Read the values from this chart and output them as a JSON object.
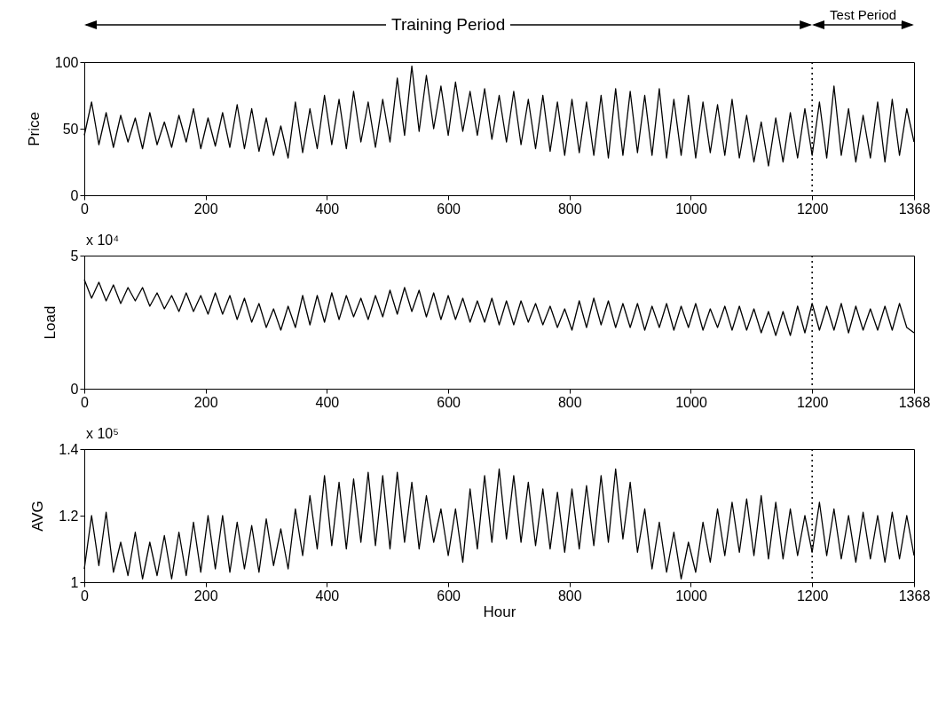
{
  "chart_data": [
    {
      "type": "line",
      "ylabel": "Price",
      "annotations": [
        "Training Period",
        "Test Period"
      ],
      "xlim": [
        0,
        1368
      ],
      "xticks": [
        0,
        200,
        400,
        600,
        800,
        1000,
        1200,
        1368
      ],
      "ylim": [
        0,
        100
      ],
      "yticks": [
        0,
        50,
        100
      ],
      "grid": false,
      "marker": "none",
      "line_style": "solid",
      "ref_lines": [
        {
          "axis": "x",
          "value": 1200,
          "line_style": "dotted",
          "color": "#000000"
        }
      ],
      "x": [
        0,
        12,
        24,
        36,
        48,
        60,
        72,
        84,
        96,
        108,
        120,
        132,
        144,
        156,
        168,
        180,
        192,
        204,
        216,
        228,
        240,
        252,
        264,
        276,
        288,
        300,
        312,
        324,
        336,
        348,
        360,
        372,
        384,
        396,
        408,
        420,
        432,
        444,
        456,
        468,
        480,
        492,
        504,
        516,
        528,
        540,
        552,
        564,
        576,
        588,
        600,
        612,
        624,
        636,
        648,
        660,
        672,
        684,
        696,
        708,
        720,
        732,
        744,
        756,
        768,
        780,
        792,
        804,
        816,
        828,
        840,
        852,
        864,
        876,
        888,
        900,
        912,
        924,
        936,
        948,
        960,
        972,
        984,
        996,
        1008,
        1020,
        1032,
        1044,
        1056,
        1068,
        1080,
        1092,
        1104,
        1116,
        1128,
        1140,
        1152,
        1164,
        1176,
        1188,
        1200,
        1212,
        1224,
        1236,
        1248,
        1260,
        1272,
        1284,
        1296,
        1308,
        1320,
        1332,
        1344,
        1356,
        1368
      ],
      "series": [
        {
          "color": "#000000",
          "values": [
            45,
            70,
            38,
            62,
            36,
            60,
            40,
            58,
            35,
            62,
            38,
            55,
            36,
            60,
            40,
            65,
            35,
            58,
            37,
            62,
            36,
            68,
            35,
            65,
            33,
            58,
            30,
            52,
            28,
            70,
            32,
            65,
            35,
            75,
            38,
            72,
            35,
            78,
            40,
            70,
            36,
            72,
            40,
            88,
            45,
            97,
            48,
            90,
            50,
            82,
            45,
            85,
            48,
            78,
            45,
            80,
            42,
            75,
            40,
            78,
            38,
            72,
            35,
            75,
            33,
            70,
            30,
            72,
            32,
            70,
            30,
            75,
            28,
            80,
            30,
            78,
            32,
            75,
            30,
            80,
            28,
            72,
            30,
            75,
            28,
            70,
            32,
            68,
            30,
            72,
            28,
            60,
            25,
            55,
            22,
            58,
            25,
            62,
            28,
            65,
            30,
            70,
            28,
            82,
            30,
            65,
            25,
            60,
            28,
            70,
            25,
            72,
            30,
            65,
            40
          ]
        }
      ]
    },
    {
      "type": "line",
      "ylabel": "Load",
      "annotations": [
        "x 10⁴"
      ],
      "xlim": [
        0,
        1368
      ],
      "xticks": [
        0,
        200,
        400,
        600,
        800,
        1000,
        1200,
        1368
      ],
      "ylim": [
        0,
        5
      ],
      "yticks": [
        0,
        5
      ],
      "grid": false,
      "marker": "none",
      "line_style": "solid",
      "ref_lines": [
        {
          "axis": "x",
          "value": 1200,
          "line_style": "dotted",
          "color": "#000000"
        }
      ],
      "x": [
        0,
        12,
        24,
        36,
        48,
        60,
        72,
        84,
        96,
        108,
        120,
        132,
        144,
        156,
        168,
        180,
        192,
        204,
        216,
        228,
        240,
        252,
        264,
        276,
        288,
        300,
        312,
        324,
        336,
        348,
        360,
        372,
        384,
        396,
        408,
        420,
        432,
        444,
        456,
        468,
        480,
        492,
        504,
        516,
        528,
        540,
        552,
        564,
        576,
        588,
        600,
        612,
        624,
        636,
        648,
        660,
        672,
        684,
        696,
        708,
        720,
        732,
        744,
        756,
        768,
        780,
        792,
        804,
        816,
        828,
        840,
        852,
        864,
        876,
        888,
        900,
        912,
        924,
        936,
        948,
        960,
        972,
        984,
        996,
        1008,
        1020,
        1032,
        1044,
        1056,
        1068,
        1080,
        1092,
        1104,
        1116,
        1128,
        1140,
        1152,
        1164,
        1176,
        1188,
        1200,
        1212,
        1224,
        1236,
        1248,
        1260,
        1272,
        1284,
        1296,
        1308,
        1320,
        1332,
        1344,
        1356,
        1368
      ],
      "series": [
        {
          "color": "#000000",
          "values": [
            4.1,
            3.4,
            4.0,
            3.3,
            3.9,
            3.2,
            3.8,
            3.3,
            3.8,
            3.1,
            3.6,
            3.0,
            3.5,
            2.9,
            3.6,
            2.9,
            3.5,
            2.8,
            3.6,
            2.8,
            3.5,
            2.6,
            3.4,
            2.5,
            3.2,
            2.3,
            3.0,
            2.2,
            3.1,
            2.3,
            3.5,
            2.4,
            3.5,
            2.5,
            3.6,
            2.6,
            3.5,
            2.7,
            3.4,
            2.6,
            3.5,
            2.7,
            3.7,
            2.8,
            3.8,
            2.9,
            3.7,
            2.7,
            3.6,
            2.6,
            3.5,
            2.6,
            3.4,
            2.5,
            3.3,
            2.5,
            3.4,
            2.4,
            3.3,
            2.4,
            3.3,
            2.5,
            3.2,
            2.4,
            3.1,
            2.3,
            3.0,
            2.2,
            3.3,
            2.3,
            3.4,
            2.4,
            3.3,
            2.3,
            3.2,
            2.3,
            3.2,
            2.2,
            3.1,
            2.3,
            3.2,
            2.2,
            3.1,
            2.3,
            3.2,
            2.2,
            3.0,
            2.3,
            3.1,
            2.2,
            3.1,
            2.2,
            3.0,
            2.1,
            2.9,
            2.0,
            2.9,
            2.0,
            3.1,
            2.1,
            3.2,
            2.2,
            3.1,
            2.2,
            3.2,
            2.1,
            3.1,
            2.2,
            3.0,
            2.2,
            3.1,
            2.2,
            3.2,
            2.3,
            2.1
          ]
        }
      ]
    },
    {
      "type": "line",
      "xlabel": "Hour",
      "ylabel": "AVG",
      "annotations": [
        "x 10⁵"
      ],
      "xlim": [
        0,
        1368
      ],
      "xticks": [
        0,
        200,
        400,
        600,
        800,
        1000,
        1200,
        1368
      ],
      "ylim": [
        1,
        1.4
      ],
      "yticks": [
        1,
        1.2,
        1.4
      ],
      "grid": false,
      "marker": "none",
      "line_style": "solid",
      "ref_lines": [
        {
          "axis": "x",
          "value": 1200,
          "line_style": "dotted",
          "color": "#000000"
        }
      ],
      "x": [
        0,
        12,
        24,
        36,
        48,
        60,
        72,
        84,
        96,
        108,
        120,
        132,
        144,
        156,
        168,
        180,
        192,
        204,
        216,
        228,
        240,
        252,
        264,
        276,
        288,
        300,
        312,
        324,
        336,
        348,
        360,
        372,
        384,
        396,
        408,
        420,
        432,
        444,
        456,
        468,
        480,
        492,
        504,
        516,
        528,
        540,
        552,
        564,
        576,
        588,
        600,
        612,
        624,
        636,
        648,
        660,
        672,
        684,
        696,
        708,
        720,
        732,
        744,
        756,
        768,
        780,
        792,
        804,
        816,
        828,
        840,
        852,
        864,
        876,
        888,
        900,
        912,
        924,
        936,
        948,
        960,
        972,
        984,
        996,
        1008,
        1020,
        1032,
        1044,
        1056,
        1068,
        1080,
        1092,
        1104,
        1116,
        1128,
        1140,
        1152,
        1164,
        1176,
        1188,
        1200,
        1212,
        1224,
        1236,
        1248,
        1260,
        1272,
        1284,
        1296,
        1308,
        1320,
        1332,
        1344,
        1356,
        1368
      ],
      "series": [
        {
          "color": "#000000",
          "values": [
            1.04,
            1.2,
            1.05,
            1.21,
            1.03,
            1.12,
            1.02,
            1.15,
            1.01,
            1.12,
            1.02,
            1.14,
            1.01,
            1.15,
            1.02,
            1.18,
            1.03,
            1.2,
            1.04,
            1.2,
            1.03,
            1.18,
            1.04,
            1.17,
            1.03,
            1.19,
            1.05,
            1.16,
            1.04,
            1.22,
            1.08,
            1.26,
            1.1,
            1.32,
            1.11,
            1.3,
            1.1,
            1.31,
            1.12,
            1.33,
            1.11,
            1.32,
            1.1,
            1.33,
            1.12,
            1.3,
            1.1,
            1.26,
            1.12,
            1.22,
            1.08,
            1.22,
            1.06,
            1.28,
            1.1,
            1.32,
            1.12,
            1.34,
            1.13,
            1.32,
            1.12,
            1.3,
            1.11,
            1.28,
            1.1,
            1.27,
            1.09,
            1.28,
            1.1,
            1.29,
            1.11,
            1.32,
            1.12,
            1.34,
            1.13,
            1.3,
            1.09,
            1.22,
            1.04,
            1.18,
            1.03,
            1.15,
            1.01,
            1.12,
            1.03,
            1.18,
            1.06,
            1.22,
            1.08,
            1.24,
            1.09,
            1.25,
            1.08,
            1.26,
            1.07,
            1.24,
            1.07,
            1.22,
            1.08,
            1.2,
            1.09,
            1.24,
            1.08,
            1.22,
            1.07,
            1.2,
            1.06,
            1.21,
            1.07,
            1.2,
            1.06,
            1.21,
            1.07,
            1.2,
            1.08
          ]
        }
      ]
    }
  ]
}
